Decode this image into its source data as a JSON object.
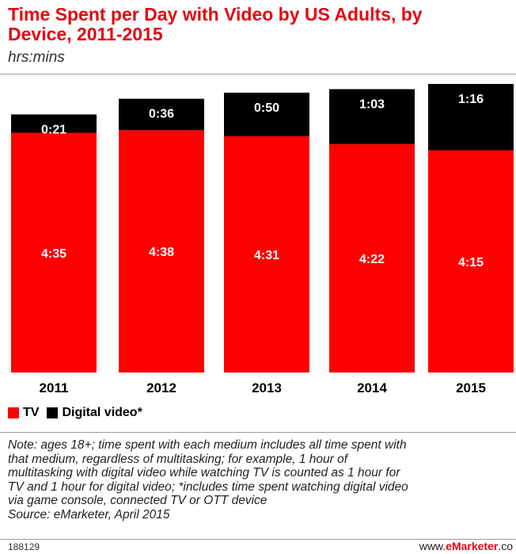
{
  "header": {
    "title_line1": "Time Spent per Day with Video by US Adults, by",
    "title_line2": "Device, 2011-2015",
    "subtitle": "hrs:mins"
  },
  "legend": {
    "tv_label": "TV",
    "digital_label": "Digital video*"
  },
  "colors": {
    "tv": "#ff0000",
    "digital": "#000000",
    "title": "#e30613"
  },
  "chart_data": {
    "type": "bar",
    "stacked": true,
    "categories": [
      "2011",
      "2012",
      "2013",
      "2014",
      "2015"
    ],
    "series": [
      {
        "name": "TV",
        "values": [
          275,
          278,
          271,
          262,
          255
        ],
        "labels": [
          "4:35",
          "4:38",
          "4:31",
          "4:22",
          "4:15"
        ],
        "color": "#ff0000"
      },
      {
        "name": "Digital video*",
        "values": [
          21,
          36,
          50,
          63,
          76
        ],
        "labels": [
          "0:21",
          "0:36",
          "0:50",
          "1:03",
          "1:16"
        ],
        "color": "#000000"
      }
    ],
    "title": "Time Spent per Day with Video by US Adults, by Device, 2011-2015",
    "unit": "hrs:mins",
    "grid": false,
    "legend_position": "bottom-left"
  },
  "note": {
    "lines": [
      "Note: ages 18+;  time spent with each medium includes all time spent with",
      "that medium, regardless of multitasking; for example, 1 hour of",
      "multitasking with digital video while watching TV is counted as 1 hour for",
      "TV and 1 hour for digital video; *includes time spent watching digital video",
      "via game console, connected TV or OTT device",
      "Source: eMarketer, April 2015"
    ]
  },
  "footer": {
    "id": "188129",
    "brand_prefix": "www.",
    "brand_name": "eMarketer",
    "brand_suffix": ".co"
  }
}
